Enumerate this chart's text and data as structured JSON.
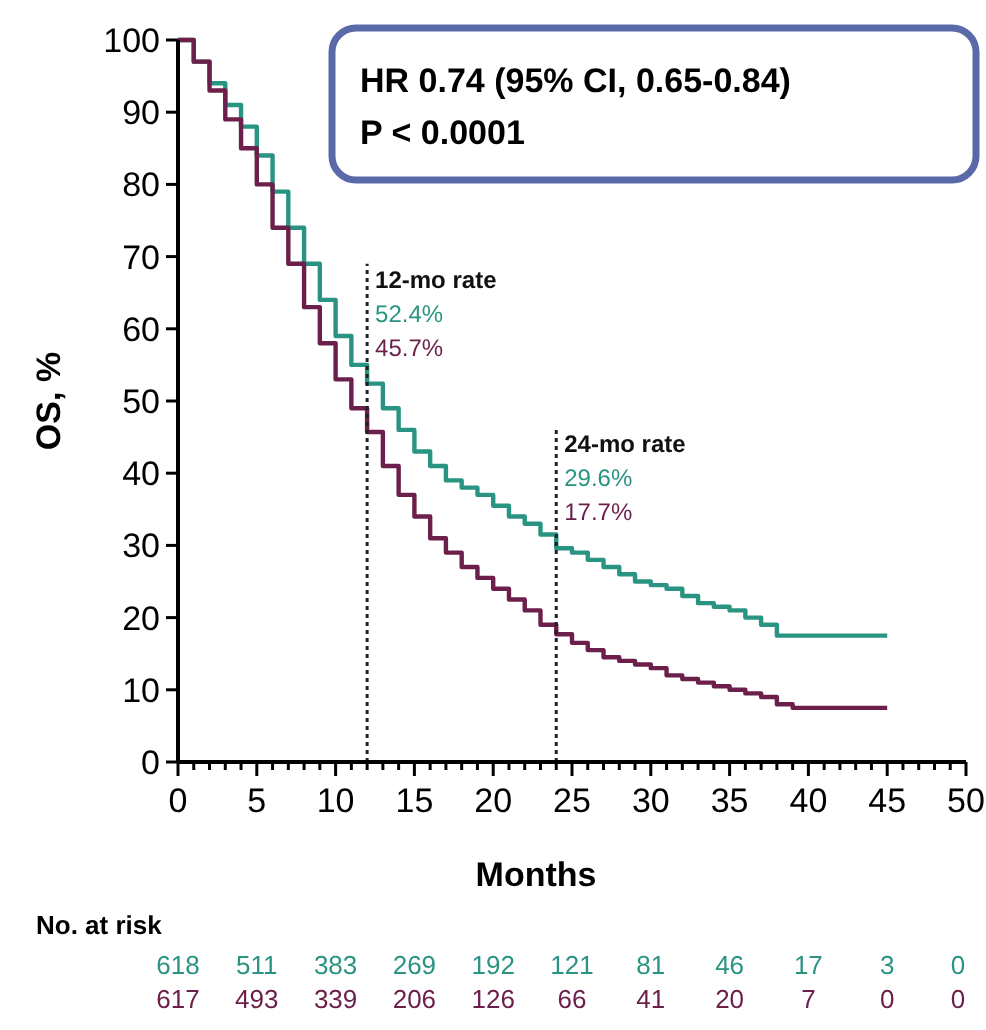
{
  "chart_data": {
    "type": "step",
    "xlabel": "Months",
    "ylabel": "OS, %",
    "xlim": [
      0,
      50
    ],
    "ylim": [
      0,
      100
    ],
    "xticks": [
      0,
      {
        "value": 1,
        "label": null
      },
      {
        "value": 2,
        "label": null
      },
      {
        "value": 3,
        "label": null
      },
      {
        "value": 4,
        "label": null
      },
      5,
      {
        "value": 6,
        "label": null
      },
      {
        "value": 7,
        "label": null
      },
      {
        "value": 8,
        "label": null
      },
      {
        "value": 9,
        "label": null
      },
      10,
      {
        "value": 11,
        "label": null
      },
      {
        "value": 12,
        "label": null
      },
      {
        "value": 13,
        "label": null
      },
      {
        "value": 14,
        "label": null
      },
      15,
      {
        "value": 16,
        "label": null
      },
      {
        "value": 17,
        "label": null
      },
      {
        "value": 18,
        "label": null
      },
      {
        "value": 19,
        "label": null
      },
      20,
      {
        "value": 21,
        "label": null
      },
      {
        "value": 22,
        "label": null
      },
      {
        "value": 23,
        "label": null
      },
      {
        "value": 24,
        "label": null
      },
      25,
      {
        "value": 26,
        "label": null
      },
      {
        "value": 27,
        "label": null
      },
      {
        "value": 28,
        "label": null
      },
      {
        "value": 29,
        "label": null
      },
      30,
      {
        "value": 31,
        "label": null
      },
      {
        "value": 32,
        "label": null
      },
      {
        "value": 33,
        "label": null
      },
      {
        "value": 34,
        "label": null
      },
      35,
      {
        "value": 36,
        "label": null
      },
      {
        "value": 37,
        "label": null
      },
      {
        "value": 38,
        "label": null
      },
      {
        "value": 39,
        "label": null
      },
      40,
      {
        "value": 41,
        "label": null
      },
      {
        "value": 42,
        "label": null
      },
      {
        "value": 43,
        "label": null
      },
      {
        "value": 44,
        "label": null
      },
      45,
      {
        "value": 46,
        "label": null
      },
      {
        "value": 47,
        "label": null
      },
      {
        "value": 48,
        "label": null
      },
      {
        "value": 49,
        "label": null
      },
      50
    ],
    "yticks": [
      0,
      10,
      20,
      30,
      40,
      50,
      60,
      70,
      80,
      90,
      100
    ],
    "grid": false,
    "marker": "none",
    "line_style": "solid",
    "x": [
      0,
      1,
      2,
      3,
      4,
      5,
      6,
      7,
      8,
      9,
      10,
      11,
      12,
      13,
      14,
      15,
      16,
      17,
      18,
      19,
      20,
      21,
      22,
      23,
      24,
      25,
      26,
      27,
      28,
      29,
      30,
      31,
      32,
      33,
      34,
      35,
      36,
      37,
      38,
      39,
      40,
      45
    ],
    "series": [
      {
        "color": "#2a9482",
        "values": [
          100,
          97,
          94,
          91,
          88,
          84,
          79,
          74,
          69,
          64,
          59,
          55,
          52.4,
          49,
          46,
          43,
          41,
          39,
          38,
          37,
          35.5,
          34,
          33,
          31.5,
          29.6,
          29,
          28,
          27,
          26,
          25,
          24.5,
          24,
          23,
          22,
          21.5,
          21,
          20,
          19,
          17.5,
          17.5,
          17.5,
          17.5
        ]
      },
      {
        "color": "#6b1f4a",
        "values": [
          100,
          97,
          93,
          89,
          85,
          80,
          74,
          69,
          63,
          58,
          53,
          49,
          45.7,
          41,
          37,
          34,
          31,
          29,
          27,
          25.5,
          24,
          22.5,
          21,
          19,
          17.7,
          16.5,
          15.5,
          14.5,
          14,
          13.5,
          13,
          12,
          11.5,
          11,
          10.5,
          10,
          9.5,
          9,
          8,
          7.5,
          7.5,
          7.5
        ]
      }
    ],
    "ref_lines": [
      {
        "axis": "x",
        "value": 12,
        "label": "12-mo rate",
        "line_style": "dotted",
        "color": "#222222"
      },
      {
        "axis": "x",
        "value": 24,
        "label": "24-mo rate",
        "line_style": "dotted",
        "color": "#222222"
      }
    ],
    "annotations": [
      "HR 0.74 (95% CI, 0.65-0.84)",
      "P < 0.0001",
      "No. at risk",
      "618 511 383 269 192 121 81 46 17 3 0",
      "617 493 339 206 126 66 41 20 7 0 0",
      "52.4%",
      "45.7%",
      "29.6%",
      "17.7%"
    ]
  }
}
